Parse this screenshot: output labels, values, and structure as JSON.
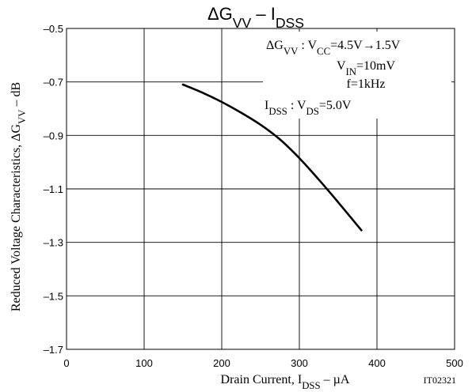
{
  "chart_data": {
    "type": "line",
    "title": {
      "prefix": "ΔG",
      "prefix_sub": "VV",
      "separator": " – ",
      "main": "I",
      "main_sub": "DSS"
    },
    "xlabel": {
      "prefix": "Drain Current, I",
      "sub": "DSS",
      "suffix": " – µA"
    },
    "ylabel": {
      "prefix": "Reduced Voltage Characteristics, ΔG",
      "sub": "VV",
      "suffix": " – dB"
    },
    "xlim": [
      0,
      500
    ],
    "ylim": [
      -1.7,
      -0.5
    ],
    "x_ticks": [
      "0",
      "100",
      "200",
      "300",
      "400",
      "500"
    ],
    "y_ticks": [
      "-0.5",
      "-0.7",
      "-0.9",
      "-1.1",
      "-1.3",
      "-1.5",
      "-1.7"
    ],
    "grid": true,
    "series": [
      {
        "x": [
          150,
          175,
          200,
          225,
          250,
          275,
          300,
          325,
          350,
          380
        ],
        "y": [
          -0.71,
          -0.74,
          -0.775,
          -0.815,
          -0.86,
          -0.915,
          -0.985,
          -1.065,
          -1.15,
          -1.255
        ]
      }
    ],
    "annotations": [
      {
        "parts": [
          [
            "ΔG",
            ""
          ],
          [
            "VV",
            "sub"
          ],
          [
            " : V",
            ""
          ],
          [
            "CC",
            "sub"
          ],
          [
            "=4.5V→1.5V",
            ""
          ]
        ]
      },
      {
        "parts": [
          [
            "V",
            ""
          ],
          [
            "IN",
            "sub"
          ],
          [
            "=10mV",
            ""
          ]
        ]
      },
      {
        "parts": [
          [
            "f=1kHz",
            ""
          ]
        ]
      },
      {
        "parts": [
          [
            "I",
            ""
          ],
          [
            "DSS",
            "sub"
          ],
          [
            " : V",
            ""
          ],
          [
            "DS",
            "sub"
          ],
          [
            "=5.0V",
            ""
          ]
        ]
      }
    ],
    "figure_code": "IT02321",
    "colors": {
      "curve": "#000000",
      "grid": "#000000",
      "background": "#ffffff"
    }
  }
}
